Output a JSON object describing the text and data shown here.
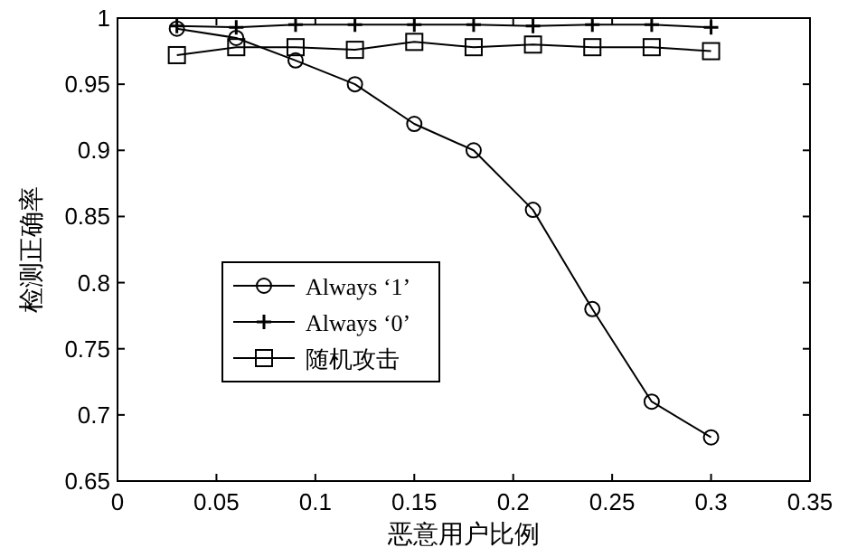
{
  "chart_data": {
    "type": "line",
    "xlabel": "恶意用户比例",
    "ylabel": "检测正确率",
    "x": [
      0.03,
      0.06,
      0.09,
      0.12,
      0.15,
      0.18,
      0.21,
      0.24,
      0.27,
      0.3
    ],
    "xlim": [
      0,
      0.35
    ],
    "xticks": [
      0,
      0.05,
      0.1,
      0.15,
      0.2,
      0.25,
      0.3,
      0.35
    ],
    "ylim": [
      0.65,
      1
    ],
    "yticks": [
      0.65,
      0.7,
      0.75,
      0.8,
      0.85,
      0.9,
      0.95,
      1
    ],
    "grid": false,
    "legend": "left",
    "line_style": "solid",
    "series": [
      {
        "name": "Always ‘1’",
        "color": "#000000",
        "marker": "circle",
        "values": [
          0.992,
          0.985,
          0.968,
          0.95,
          0.92,
          0.9,
          0.855,
          0.78,
          0.71,
          0.683
        ]
      },
      {
        "name": "Always ‘0’",
        "color": "#000000",
        "marker": "cross",
        "values": [
          0.994,
          0.993,
          0.995,
          0.995,
          0.995,
          0.995,
          0.994,
          0.995,
          0.995,
          0.993
        ]
      },
      {
        "name": "随机攻击",
        "color": "#000000",
        "marker": "square",
        "values": [
          0.972,
          0.978,
          0.978,
          0.976,
          0.982,
          0.978,
          0.98,
          0.978,
          0.978,
          0.975
        ]
      }
    ]
  }
}
